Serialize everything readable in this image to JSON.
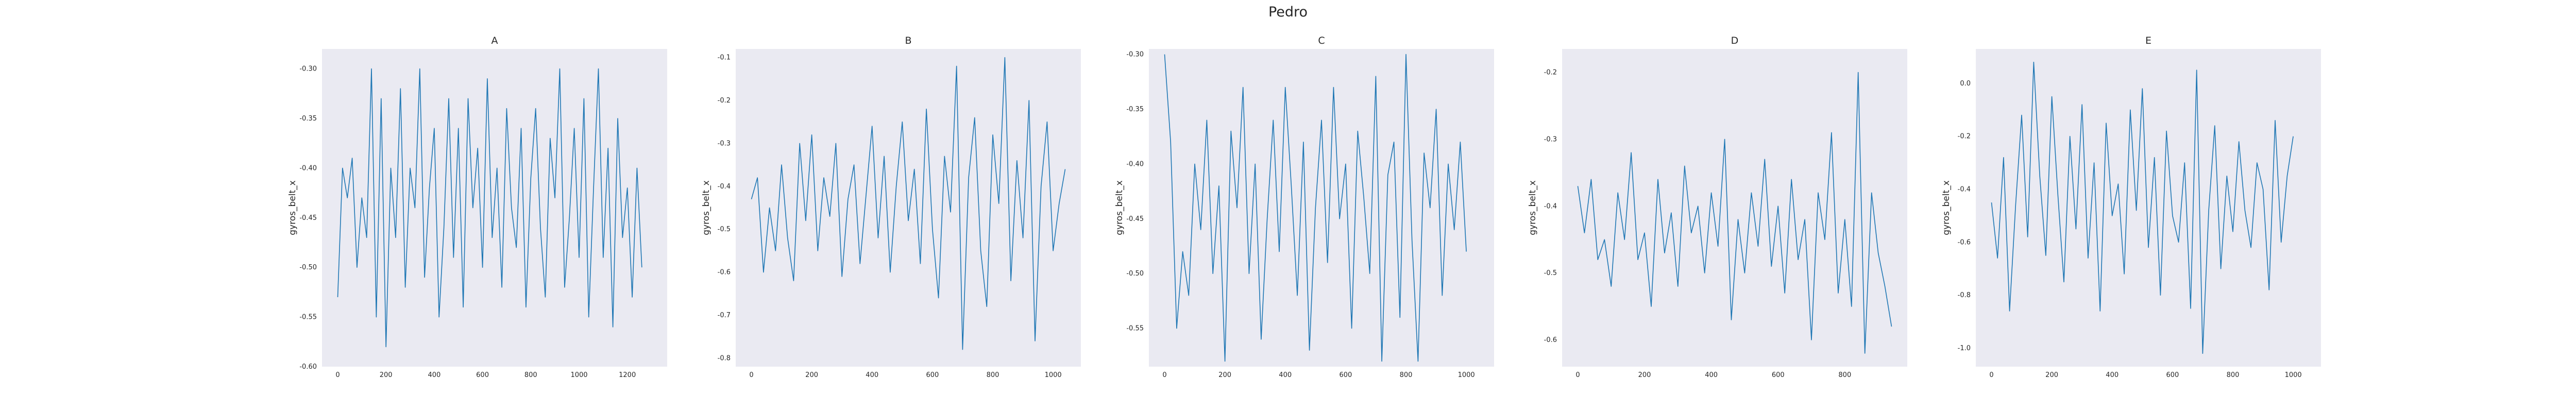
{
  "figure": {
    "title": "Pedro"
  },
  "style": {
    "panel_bg": "#EAEAF2",
    "line_color": "#1F77B4",
    "text_color": "#262626"
  },
  "chart_data": [
    {
      "type": "line",
      "title": "A",
      "xlabel": "",
      "ylabel": "gyros_belt_x",
      "xlim": [
        -65,
        1365
      ],
      "ylim": [
        -0.6,
        -0.28
      ],
      "xticks": [
        0,
        200,
        400,
        600,
        800,
        1000,
        1200
      ],
      "yticks": [
        -0.6,
        -0.55,
        -0.5,
        -0.45,
        -0.4,
        -0.35,
        -0.3
      ],
      "ytick_labels": [
        "-0.60",
        "-0.55",
        "-0.50",
        "-0.45",
        "-0.40",
        "-0.35",
        "-0.30"
      ],
      "grid": false,
      "series": [
        {
          "x": [
            0,
            20,
            40,
            60,
            80,
            100,
            120,
            140,
            160,
            180,
            200,
            220,
            240,
            260,
            280,
            300,
            320,
            340,
            360,
            380,
            400,
            420,
            440,
            460,
            480,
            500,
            520,
            540,
            560,
            580,
            600,
            620,
            640,
            660,
            680,
            700,
            720,
            740,
            760,
            780,
            800,
            820,
            840,
            860,
            880,
            900,
            920,
            940,
            960,
            980,
            1000,
            1020,
            1040,
            1060,
            1080,
            1100,
            1120,
            1140,
            1160,
            1180,
            1200,
            1220,
            1240,
            1260
          ],
          "y": [
            -0.53,
            -0.4,
            -0.43,
            -0.39,
            -0.5,
            -0.43,
            -0.47,
            -0.3,
            -0.55,
            -0.33,
            -0.58,
            -0.4,
            -0.47,
            -0.32,
            -0.52,
            -0.4,
            -0.44,
            -0.3,
            -0.51,
            -0.42,
            -0.36,
            -0.55,
            -0.46,
            -0.33,
            -0.49,
            -0.36,
            -0.54,
            -0.33,
            -0.44,
            -0.38,
            -0.5,
            -0.31,
            -0.47,
            -0.4,
            -0.52,
            -0.34,
            -0.44,
            -0.48,
            -0.36,
            -0.54,
            -0.41,
            -0.34,
            -0.46,
            -0.53,
            -0.37,
            -0.43,
            -0.3,
            -0.52,
            -0.45,
            -0.36,
            -0.49,
            -0.33,
            -0.55,
            -0.42,
            -0.3,
            -0.49,
            -0.38,
            -0.56,
            -0.35,
            -0.47,
            -0.42,
            -0.53,
            -0.4,
            -0.5
          ]
        }
      ]
    },
    {
      "type": "line",
      "title": "B",
      "xlabel": "",
      "ylabel": "gyros_belt_x",
      "xlim": [
        -52,
        1092
      ],
      "ylim": [
        -0.82,
        -0.08
      ],
      "xticks": [
        0,
        200,
        400,
        600,
        800,
        1000
      ],
      "yticks": [
        -0.8,
        -0.7,
        -0.6,
        -0.5,
        -0.4,
        -0.3,
        -0.2,
        -0.1
      ],
      "ytick_labels": [
        "-0.8",
        "-0.7",
        "-0.6",
        "-0.5",
        "-0.4",
        "-0.3",
        "-0.2",
        "-0.1"
      ],
      "grid": false,
      "series": [
        {
          "x": [
            0,
            20,
            40,
            60,
            80,
            100,
            120,
            140,
            160,
            180,
            200,
            220,
            240,
            260,
            280,
            300,
            320,
            340,
            360,
            380,
            400,
            420,
            440,
            460,
            480,
            500,
            520,
            540,
            560,
            580,
            600,
            620,
            640,
            660,
            680,
            700,
            720,
            740,
            760,
            780,
            800,
            820,
            840,
            860,
            880,
            900,
            920,
            940,
            960,
            980,
            1000,
            1020,
            1040
          ],
          "y": [
            -0.43,
            -0.38,
            -0.6,
            -0.45,
            -0.55,
            -0.35,
            -0.52,
            -0.62,
            -0.3,
            -0.48,
            -0.28,
            -0.55,
            -0.38,
            -0.47,
            -0.3,
            -0.61,
            -0.43,
            -0.35,
            -0.58,
            -0.42,
            -0.26,
            -0.52,
            -0.33,
            -0.6,
            -0.4,
            -0.25,
            -0.48,
            -0.36,
            -0.58,
            -0.22,
            -0.5,
            -0.66,
            -0.33,
            -0.46,
            -0.12,
            -0.78,
            -0.38,
            -0.24,
            -0.55,
            -0.68,
            -0.28,
            -0.44,
            -0.1,
            -0.62,
            -0.34,
            -0.52,
            -0.2,
            -0.76,
            -0.4,
            -0.25,
            -0.55,
            -0.44,
            -0.36
          ]
        }
      ]
    },
    {
      "type": "line",
      "title": "C",
      "xlabel": "",
      "ylabel": "gyros_belt_x",
      "xlim": [
        -52,
        1092
      ],
      "ylim": [
        -0.585,
        -0.295
      ],
      "xticks": [
        0,
        200,
        400,
        600,
        800,
        1000
      ],
      "yticks": [
        -0.55,
        -0.5,
        -0.45,
        -0.4,
        -0.35,
        -0.3
      ],
      "ytick_labels": [
        "-0.55",
        "-0.50",
        "-0.45",
        "-0.40",
        "-0.35",
        "-0.30"
      ],
      "grid": false,
      "series": [
        {
          "x": [
            0,
            20,
            40,
            60,
            80,
            100,
            120,
            140,
            160,
            180,
            200,
            220,
            240,
            260,
            280,
            300,
            320,
            340,
            360,
            380,
            400,
            420,
            440,
            460,
            480,
            500,
            520,
            540,
            560,
            580,
            600,
            620,
            640,
            660,
            680,
            700,
            720,
            740,
            760,
            780,
            800,
            820,
            840,
            860,
            880,
            900,
            920,
            940,
            960,
            980,
            1000
          ],
          "y": [
            -0.3,
            -0.38,
            -0.55,
            -0.48,
            -0.52,
            -0.4,
            -0.46,
            -0.36,
            -0.5,
            -0.42,
            -0.58,
            -0.37,
            -0.44,
            -0.33,
            -0.5,
            -0.4,
            -0.56,
            -0.45,
            -0.36,
            -0.48,
            -0.33,
            -0.42,
            -0.52,
            -0.38,
            -0.57,
            -0.44,
            -0.36,
            -0.49,
            -0.33,
            -0.45,
            -0.4,
            -0.55,
            -0.37,
            -0.43,
            -0.5,
            -0.32,
            -0.58,
            -0.41,
            -0.38,
            -0.54,
            -0.3,
            -0.47,
            -0.58,
            -0.39,
            -0.44,
            -0.35,
            -0.52,
            -0.4,
            -0.46,
            -0.38,
            -0.48
          ]
        }
      ]
    },
    {
      "type": "line",
      "title": "D",
      "xlabel": "",
      "ylabel": "gyros_belt_x",
      "xlim": [
        -47,
        987
      ],
      "ylim": [
        -0.64,
        -0.165
      ],
      "xticks": [
        0,
        200,
        400,
        600,
        800
      ],
      "yticks": [
        -0.6,
        -0.5,
        -0.4,
        -0.3,
        -0.2
      ],
      "ytick_labels": [
        "-0.6",
        "-0.5",
        "-0.4",
        "-0.3",
        "-0.2"
      ],
      "grid": false,
      "series": [
        {
          "x": [
            0,
            20,
            40,
            60,
            80,
            100,
            120,
            140,
            160,
            180,
            200,
            220,
            240,
            260,
            280,
            300,
            320,
            340,
            360,
            380,
            400,
            420,
            440,
            460,
            480,
            500,
            520,
            540,
            560,
            580,
            600,
            620,
            640,
            660,
            680,
            700,
            720,
            740,
            760,
            780,
            800,
            820,
            840,
            860,
            880,
            900,
            920,
            940
          ],
          "y": [
            -0.37,
            -0.44,
            -0.36,
            -0.48,
            -0.45,
            -0.52,
            -0.38,
            -0.45,
            -0.32,
            -0.48,
            -0.44,
            -0.55,
            -0.36,
            -0.47,
            -0.41,
            -0.52,
            -0.34,
            -0.44,
            -0.4,
            -0.5,
            -0.38,
            -0.46,
            -0.3,
            -0.57,
            -0.42,
            -0.5,
            -0.38,
            -0.46,
            -0.33,
            -0.49,
            -0.4,
            -0.53,
            -0.36,
            -0.48,
            -0.42,
            -0.6,
            -0.38,
            -0.45,
            -0.29,
            -0.53,
            -0.42,
            -0.55,
            -0.2,
            -0.62,
            -0.38,
            -0.47,
            -0.52,
            -0.58
          ]
        }
      ]
    },
    {
      "type": "line",
      "title": "E",
      "xlabel": "",
      "ylabel": "gyros_belt_x",
      "xlim": [
        -52,
        1092
      ],
      "ylim": [
        -1.07,
        0.13
      ],
      "xticks": [
        0,
        200,
        400,
        600,
        800,
        1000
      ],
      "yticks": [
        -1.0,
        -0.8,
        -0.6,
        -0.4,
        -0.2,
        0.0
      ],
      "ytick_labels": [
        "-1.0",
        "-0.8",
        "-0.6",
        "-0.4",
        "-0.2",
        "0.0"
      ],
      "grid": false,
      "series": [
        {
          "x": [
            0,
            20,
            40,
            60,
            80,
            100,
            120,
            140,
            160,
            180,
            200,
            220,
            240,
            260,
            280,
            300,
            320,
            340,
            360,
            380,
            400,
            420,
            440,
            460,
            480,
            500,
            520,
            540,
            560,
            580,
            600,
            620,
            640,
            660,
            680,
            700,
            720,
            740,
            760,
            780,
            800,
            820,
            840,
            860,
            880,
            900,
            920,
            940,
            960,
            980,
            1000
          ],
          "y": [
            -0.45,
            -0.66,
            -0.28,
            -0.86,
            -0.46,
            -0.12,
            -0.58,
            0.08,
            -0.35,
            -0.65,
            -0.05,
            -0.42,
            -0.75,
            -0.2,
            -0.55,
            -0.08,
            -0.66,
            -0.3,
            -0.86,
            -0.15,
            -0.5,
            -0.38,
            -0.72,
            -0.1,
            -0.48,
            -0.02,
            -0.62,
            -0.28,
            -0.8,
            -0.18,
            -0.5,
            -0.6,
            -0.3,
            -0.85,
            0.05,
            -1.02,
            -0.48,
            -0.16,
            -0.7,
            -0.35,
            -0.56,
            -0.22,
            -0.48,
            -0.62,
            -0.3,
            -0.4,
            -0.78,
            -0.14,
            -0.6,
            -0.35,
            -0.2
          ]
        }
      ]
    }
  ]
}
